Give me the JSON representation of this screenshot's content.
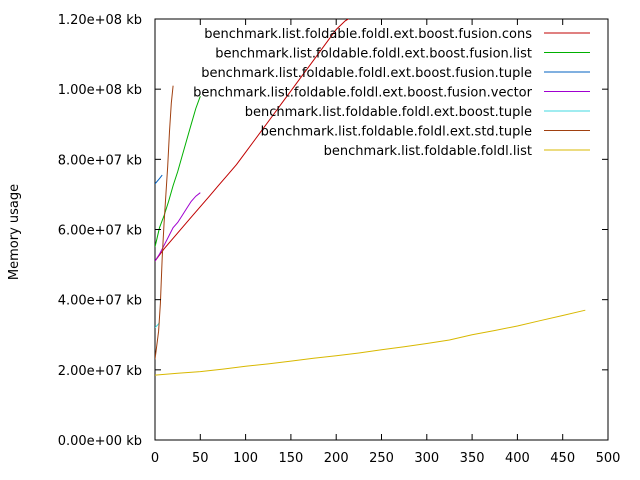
{
  "chart_data": {
    "type": "line",
    "title": "",
    "xlabel": "",
    "ylabel": "Memory usage",
    "xlim": [
      0,
      500
    ],
    "ylim": [
      0,
      120000000
    ],
    "x_ticks": [
      0,
      50,
      100,
      150,
      200,
      250,
      300,
      350,
      400,
      450,
      500
    ],
    "x_tick_labels": [
      "0",
      "50",
      "100",
      "150",
      "200",
      "250",
      "300",
      "350",
      "400",
      "450",
      "500"
    ],
    "y_ticks": [
      0,
      20000000,
      40000000,
      60000000,
      80000000,
      100000000,
      120000000
    ],
    "y_tick_labels": [
      "0.00e+00 kb",
      "2.00e+07 kb",
      "4.00e+07 kb",
      "6.00e+07 kb",
      "8.00e+07 kb",
      "1.00e+08 kb",
      "1.20e+08 kb"
    ],
    "grid": false,
    "legend_position": "top-right",
    "series": [
      {
        "name": "benchmark.list.foldable.foldl.ext.boost.fusion.cons",
        "color": "#c00000",
        "x": [
          0,
          10,
          20,
          30,
          40,
          50,
          60,
          70,
          80,
          90,
          100,
          110,
          120,
          130,
          140,
          150,
          160,
          170,
          180,
          190,
          200,
          210,
          220
        ],
        "y": [
          51000000,
          54500000,
          57500000,
          60500000,
          63500000,
          66500000,
          69500000,
          72500000,
          75500000,
          78500000,
          82000000,
          85500000,
          89000000,
          92500000,
          96000000,
          99500000,
          103000000,
          106500000,
          110000000,
          113500000,
          117000000,
          119500000,
          121000000
        ]
      },
      {
        "name": "benchmark.list.foldable.foldl.ext.boost.fusion.list",
        "color": "#00b000",
        "x": [
          0,
          5,
          10,
          15,
          20,
          25,
          30,
          35,
          40,
          45,
          50
        ],
        "y": [
          55000000,
          60500000,
          64000000,
          68000000,
          72500000,
          76500000,
          81000000,
          85500000,
          90000000,
          94500000,
          98000000
        ]
      },
      {
        "name": "benchmark.list.foldable.foldl.ext.boost.fusion.tuple",
        "color": "#0060c0",
        "x": [
          0,
          5,
          8
        ],
        "y": [
          73000000,
          74500000,
          75500000
        ]
      },
      {
        "name": "benchmark.list.foldable.foldl.ext.boost.fusion.vector",
        "color": "#a000d0",
        "x": [
          0,
          5,
          10,
          15,
          20,
          25,
          30,
          35,
          40,
          45,
          50
        ],
        "y": [
          51000000,
          53000000,
          55500000,
          58000000,
          60500000,
          62000000,
          64000000,
          66000000,
          68000000,
          69500000,
          70500000
        ]
      },
      {
        "name": "benchmark.list.foldable.foldl.ext.boost.tuple",
        "color": "#40d8e0",
        "x": [
          0,
          3,
          5
        ],
        "y": [
          32000000,
          32800000,
          33500000
        ]
      },
      {
        "name": "benchmark.list.foldable.foldl.ext.std.tuple",
        "color": "#a04010",
        "x": [
          0,
          2,
          4,
          6,
          8,
          10,
          12,
          14,
          16,
          18,
          20
        ],
        "y": [
          23000000,
          27000000,
          31000000,
          39000000,
          52000000,
          62000000,
          70000000,
          78000000,
          88000000,
          96000000,
          101000000
        ]
      },
      {
        "name": "benchmark.list.foldable.foldl.list",
        "color": "#d8b800",
        "x": [
          0,
          25,
          50,
          75,
          100,
          125,
          150,
          175,
          200,
          225,
          250,
          275,
          300,
          325,
          350,
          375,
          400,
          425,
          450,
          475
        ],
        "y": [
          18500000,
          19000000,
          19500000,
          20200000,
          21000000,
          21700000,
          22500000,
          23300000,
          24000000,
          24800000,
          25700000,
          26600000,
          27500000,
          28500000,
          30000000,
          31200000,
          32500000,
          34000000,
          35500000,
          37000000
        ]
      }
    ]
  }
}
